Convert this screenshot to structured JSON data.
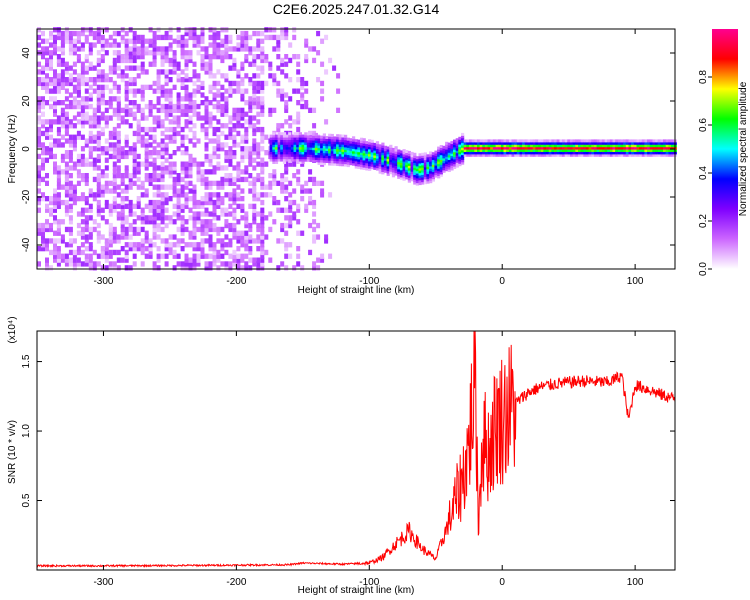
{
  "title": "C2E6.2025.247.01.32.G14",
  "chart_data": [
    {
      "type": "heatmap",
      "title": "C2E6.2025.247.01.32.G14",
      "xlabel": "Height of straight line (km)",
      "ylabel": "Frequency (Hz)",
      "xlim": [
        -350,
        130
      ],
      "ylim": [
        -50,
        50
      ],
      "xticks": [
        -300,
        -200,
        -100,
        0,
        100
      ],
      "xtick_labels": [
        "-300",
        "-200",
        "-100",
        "0",
        "100"
      ],
      "yticks": [
        -40,
        -20,
        0,
        20,
        40
      ],
      "ytick_labels": [
        "-40",
        "-20",
        "0",
        "20",
        "40"
      ],
      "colorbar": {
        "label": "Normalized spectral amplitude",
        "range": [
          0,
          1
        ],
        "ticks": [
          0.0,
          0.2,
          0.4,
          0.6,
          0.8
        ],
        "tick_labels": [
          "0.0",
          "0.2",
          "0.4",
          "0.6",
          "0.8"
        ],
        "colormap": [
          "#ffffff",
          "#cc66ff",
          "#7f00ff",
          "#0000ff",
          "#00ffff",
          "#00ff00",
          "#ffff00",
          "#ff0000",
          "#ff0090"
        ]
      },
      "regions": [
        {
          "name": "broadband noise",
          "x_range": [
            -350,
            -120
          ],
          "freq_range": [
            -50,
            50
          ],
          "amplitude": 0.1
        },
        {
          "name": "signal trace",
          "x_range": [
            -175,
            130
          ],
          "freq_track": [
            [
              -175,
              0
            ],
            [
              -150,
              0
            ],
            [
              -120,
              -1
            ],
            [
              -100,
              -3
            ],
            [
              -80,
              -6
            ],
            [
              -65,
              -9
            ],
            [
              -55,
              -8
            ],
            [
              -40,
              -3
            ],
            [
              -30,
              0
            ],
            [
              0,
              0
            ],
            [
              130,
              0
            ]
          ],
          "amplitude_range": [
            0.3,
            1.0
          ]
        }
      ]
    },
    {
      "type": "line",
      "xlabel": "Height of straight line (km)",
      "ylabel": "SNR (10 * v/v)",
      "y_multiplier": "(x10⁴)",
      "xlim": [
        -350,
        130
      ],
      "ylim": [
        0,
        17200
      ],
      "xticks": [
        -300,
        -200,
        -100,
        0,
        100
      ],
      "xtick_labels": [
        "-300",
        "-200",
        "-100",
        "0",
        "100"
      ],
      "yticks": [
        5000,
        10000,
        15000
      ],
      "ytick_labels": [
        "0.5",
        "1.0",
        "1.5"
      ],
      "series": [
        {
          "name": "SNR",
          "color": "#ff0000",
          "x": [
            -350,
            -300,
            -250,
            -200,
            -160,
            -150,
            -120,
            -100,
            -90,
            -80,
            -70,
            -60,
            -50,
            -40,
            -30,
            -25,
            -20,
            -18,
            -15,
            -10,
            -5,
            0,
            10,
            20,
            30,
            40,
            60,
            80,
            90,
            95,
            100,
            110,
            120,
            130
          ],
          "y": [
            300,
            300,
            320,
            350,
            380,
            500,
            420,
            500,
            900,
            1900,
            2800,
            1500,
            800,
            3500,
            6500,
            9000,
            14500,
            3000,
            9500,
            8500,
            10500,
            11000,
            12000,
            12800,
            13200,
            13400,
            13600,
            13500,
            14000,
            10800,
            13300,
            13000,
            12600,
            12300
          ]
        }
      ]
    }
  ]
}
